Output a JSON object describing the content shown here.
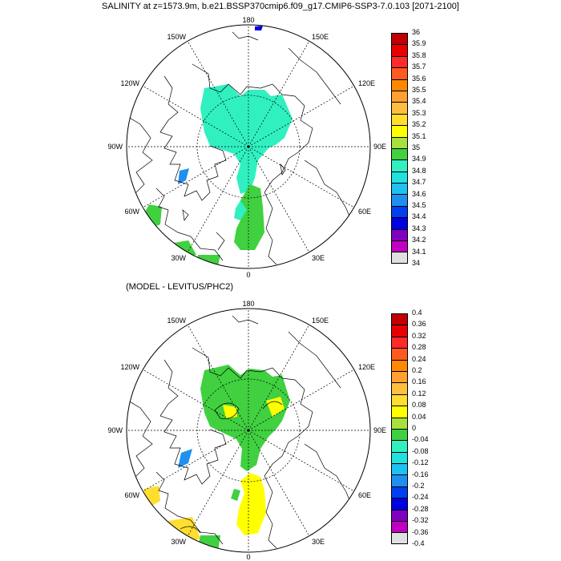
{
  "header": {
    "title": "SALINITY at z=1573.9m, b.e21.BSSP370cmip6.f09_g17.CMIP6-SSP3-7.0.103 [2071-2100]",
    "subtitle": "(MODEL - LEVITUS/PHC2)"
  },
  "maps": {
    "longitude_labels": [
      "180",
      "150E",
      "120E",
      "90E",
      "60E",
      "30E",
      "0",
      "30W",
      "60W",
      "90W",
      "120W",
      "150W"
    ]
  },
  "colorbar_top": {
    "labels": [
      "36",
      "35.9",
      "35.8",
      "35.7",
      "35.6",
      "35.5",
      "35.4",
      "35.3",
      "35.2",
      "35.1",
      "35",
      "34.9",
      "34.8",
      "34.7",
      "34.6",
      "34.5",
      "34.4",
      "34.3",
      "34.2",
      "34.1",
      "34"
    ],
    "colors": [
      "#c00000",
      "#e80000",
      "#ff2a2a",
      "#ff5a20",
      "#ff8800",
      "#ffa030",
      "#ffbe40",
      "#ffde30",
      "#ffff00",
      "#a8e040",
      "#40d040",
      "#30f0c0",
      "#20e0e0",
      "#20c0f0",
      "#2090f0",
      "#0040f0",
      "#0000e0",
      "#8000c0",
      "#c000c0",
      "#e0e0e0",
      "#808080"
    ]
  },
  "colorbar_bottom": {
    "labels": [
      "0.4",
      "0.36",
      "0.32",
      "0.28",
      "0.24",
      "0.2",
      "0.16",
      "0.12",
      "0.08",
      "0.04",
      "0",
      "-0.04",
      "-0.08",
      "-0.12",
      "-0.16",
      "-0.2",
      "-0.24",
      "-0.28",
      "-0.32",
      "-0.36",
      "-0.4"
    ],
    "colors": [
      "#c00000",
      "#e80000",
      "#ff2a2a",
      "#ff5a20",
      "#ff8800",
      "#ffa030",
      "#ffbe40",
      "#ffde30",
      "#ffff00",
      "#a8e040",
      "#40d040",
      "#30f0c0",
      "#20e0e0",
      "#20c0f0",
      "#2090f0",
      "#0040f0",
      "#0000e0",
      "#8000c0",
      "#c000c0",
      "#e0e0e0",
      "#808080"
    ]
  }
}
